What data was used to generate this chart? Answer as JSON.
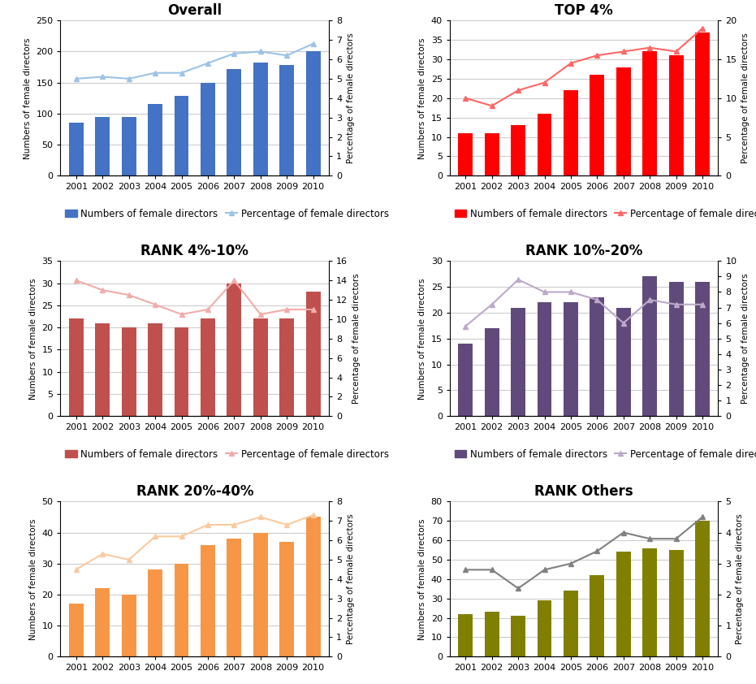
{
  "years": [
    2001,
    2002,
    2003,
    2004,
    2005,
    2006,
    2007,
    2008,
    2009,
    2010
  ],
  "panels": [
    {
      "title": "Overall",
      "bar_values": [
        85,
        95,
        95,
        115,
        128,
        150,
        172,
        182,
        178,
        200
      ],
      "line_values": [
        5.0,
        5.1,
        5.0,
        5.3,
        5.3,
        5.8,
        6.3,
        6.4,
        6.2,
        6.8
      ],
      "bar_color": "#4472C4",
      "line_color": "#9DC3E6",
      "ylim_bar": [
        0,
        250
      ],
      "ylim_line": [
        0,
        8
      ],
      "yticks_bar": [
        0,
        50,
        100,
        150,
        200,
        250
      ],
      "yticks_line": [
        0,
        1,
        2,
        3,
        4,
        5,
        6,
        7,
        8
      ]
    },
    {
      "title": "TOP 4%",
      "bar_values": [
        11,
        11,
        13,
        16,
        22,
        26,
        28,
        32,
        31,
        37
      ],
      "line_values": [
        10.0,
        9.0,
        11.0,
        12.0,
        14.5,
        15.5,
        16.0,
        16.5,
        16.0,
        19.0
      ],
      "bar_color": "#FF0000",
      "line_color": "#FF6666",
      "ylim_bar": [
        0,
        40
      ],
      "ylim_line": [
        0,
        20
      ],
      "yticks_bar": [
        0,
        5,
        10,
        15,
        20,
        25,
        30,
        35,
        40
      ],
      "yticks_line": [
        0,
        5,
        10,
        15,
        20
      ]
    },
    {
      "title": "RANK 4%-10%",
      "bar_values": [
        22,
        21,
        20,
        21,
        20,
        22,
        30,
        22,
        22,
        28
      ],
      "line_values": [
        14.0,
        13.0,
        12.5,
        11.5,
        10.5,
        11.0,
        14.0,
        10.5,
        11.0,
        11.0
      ],
      "bar_color": "#C0504D",
      "line_color": "#F2ACAA",
      "ylim_bar": [
        0,
        35
      ],
      "ylim_line": [
        0,
        16
      ],
      "yticks_bar": [
        0,
        5,
        10,
        15,
        20,
        25,
        30,
        35
      ],
      "yticks_line": [
        0,
        2,
        4,
        6,
        8,
        10,
        12,
        14,
        16
      ]
    },
    {
      "title": "RANK 10%-20%",
      "bar_values": [
        14,
        17,
        21,
        22,
        22,
        23,
        21,
        27,
        26,
        26
      ],
      "line_values": [
        5.8,
        7.2,
        8.8,
        8.0,
        8.0,
        7.5,
        6.0,
        7.5,
        7.2,
        7.2
      ],
      "bar_color": "#604A7B",
      "line_color": "#BDA9CA",
      "ylim_bar": [
        0,
        30
      ],
      "ylim_line": [
        0,
        10
      ],
      "yticks_bar": [
        0,
        5,
        10,
        15,
        20,
        25,
        30
      ],
      "yticks_line": [
        0,
        1,
        2,
        3,
        4,
        5,
        6,
        7,
        8,
        9,
        10
      ]
    },
    {
      "title": "RANK 20%-40%",
      "bar_values": [
        17,
        22,
        20,
        28,
        30,
        36,
        38,
        40,
        37,
        45
      ],
      "line_values": [
        4.5,
        5.3,
        5.0,
        6.2,
        6.2,
        6.8,
        6.8,
        7.2,
        6.8,
        7.3
      ],
      "bar_color": "#F79646",
      "line_color": "#FBCAA0",
      "ylim_bar": [
        0,
        50
      ],
      "ylim_line": [
        0,
        8
      ],
      "yticks_bar": [
        0,
        10,
        20,
        30,
        40,
        50
      ],
      "yticks_line": [
        0,
        1,
        2,
        3,
        4,
        5,
        6,
        7,
        8
      ]
    },
    {
      "title": "RANK Others",
      "bar_values": [
        22,
        23,
        21,
        29,
        34,
        42,
        54,
        56,
        55,
        70
      ],
      "line_values": [
        2.8,
        2.8,
        2.2,
        2.8,
        3.0,
        3.4,
        4.0,
        3.8,
        3.8,
        4.5
      ],
      "bar_color": "#808000",
      "line_color": "#808080",
      "ylim_bar": [
        0,
        80
      ],
      "ylim_line": [
        0,
        5
      ],
      "yticks_bar": [
        0,
        10,
        20,
        30,
        40,
        50,
        60,
        70,
        80
      ],
      "yticks_line": [
        0,
        1,
        2,
        3,
        4,
        5
      ]
    }
  ],
  "ylabel_left": "Numbers of female directors",
  "ylabel_right": "Percentage of female directors",
  "legend_bar": "Numbers of female directors",
  "legend_line": "Percentage of female directors",
  "background_color": "#FFFFFF",
  "title_fontsize": 12,
  "label_fontsize": 7.5,
  "tick_fontsize": 8,
  "legend_fontsize": 8.5
}
